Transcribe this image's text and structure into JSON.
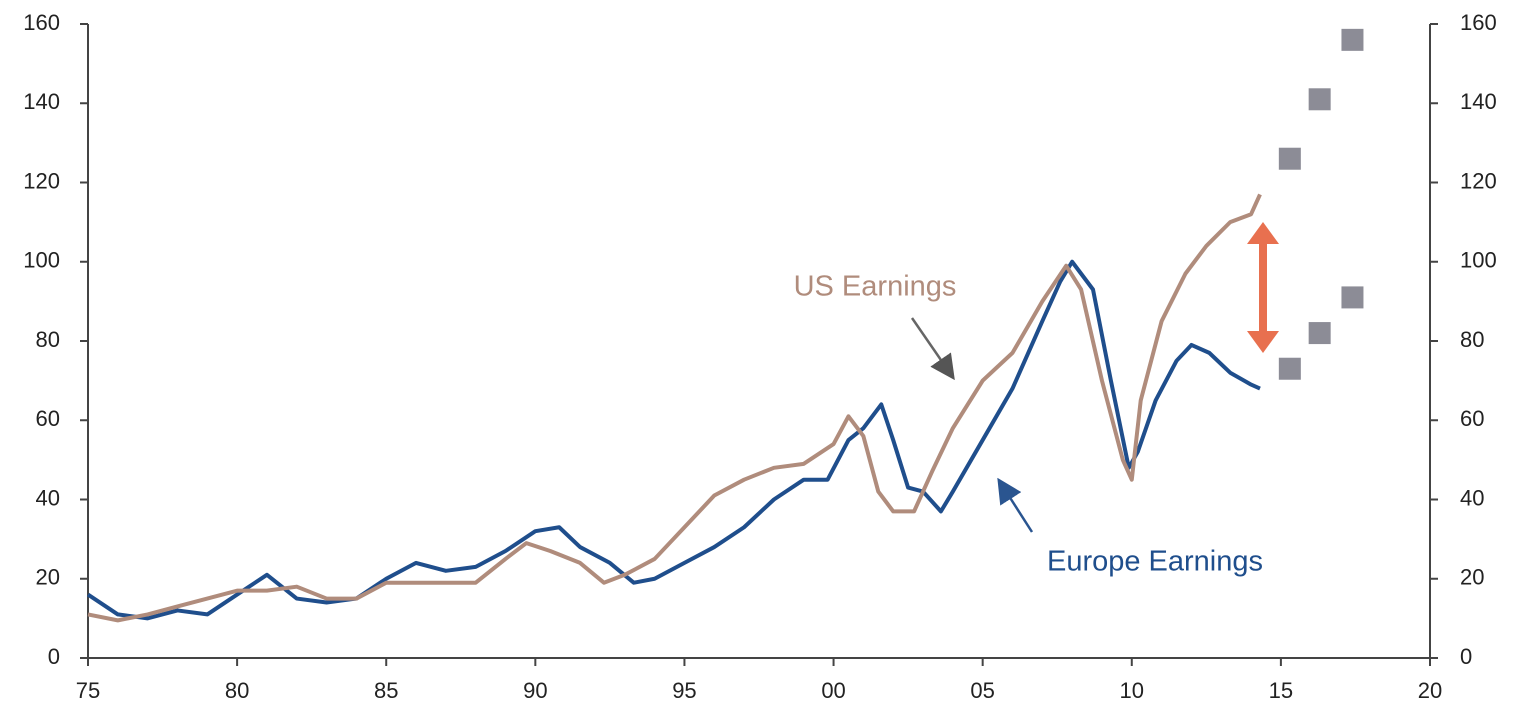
{
  "chart_data": {
    "type": "line",
    "annotations": [],
    "xlim": [
      1975,
      2020
    ],
    "xticks": [
      {
        "value": 1975,
        "label": "75"
      },
      {
        "value": 1980,
        "label": "80"
      },
      {
        "value": 1985,
        "label": "85"
      },
      {
        "value": 1990,
        "label": "90"
      },
      {
        "value": 1995,
        "label": "95"
      },
      {
        "value": 2000,
        "label": "00"
      },
      {
        "value": 2005,
        "label": "05"
      },
      {
        "value": 2010,
        "label": "10"
      },
      {
        "value": 2015,
        "label": "15"
      },
      {
        "value": 2020,
        "label": "20"
      }
    ],
    "ylim": [
      0,
      160
    ],
    "yticks": [
      0,
      20,
      40,
      60,
      80,
      100,
      120,
      140,
      160
    ],
    "y2lim": [
      0,
      160
    ],
    "y2ticks": [
      0,
      20,
      40,
      60,
      80,
      100,
      120,
      140,
      160
    ],
    "series": [
      {
        "name": "Europe Earnings",
        "color": "#1f4e8c",
        "x": [
          1975,
          1976,
          1977,
          1978,
          1979,
          1980,
          1981,
          1982,
          1983,
          1984,
          1985,
          1986,
          1987,
          1988,
          1989,
          1990,
          1990.8,
          1991.5,
          1992.5,
          1993.3,
          1994,
          1995,
          1996,
          1997,
          1998,
          1999,
          1999.8,
          2000.5,
          2001,
          2001.6,
          2002,
          2002.5,
          2003,
          2003.6,
          2004,
          2005,
          2006,
          2007,
          2007.6,
          2008,
          2008.7,
          2009.3,
          2009.9,
          2010.2,
          2010.8,
          2011.5,
          2012,
          2012.6,
          2013.3,
          2014,
          2014.3
        ],
        "values": [
          16,
          11,
          10,
          12,
          11,
          16,
          21,
          15,
          14,
          15,
          20,
          24,
          22,
          23,
          27,
          32,
          33,
          28,
          24,
          19,
          20,
          24,
          28,
          33,
          40,
          45,
          45,
          55,
          58,
          64,
          55,
          43,
          42,
          37,
          42,
          55,
          68,
          85,
          95,
          100,
          93,
          70,
          48,
          52,
          65,
          75,
          79,
          77,
          72,
          69,
          68
        ]
      },
      {
        "name": "US Earnings",
        "color": "#b08c7c",
        "x": [
          1975,
          1976,
          1977,
          1978,
          1979,
          1980,
          1981,
          1982,
          1983,
          1984,
          1985,
          1986,
          1987,
          1988,
          1989,
          1989.7,
          1990.5,
          1991.5,
          1992.3,
          1993,
          1994,
          1995,
          1996,
          1997,
          1998,
          1999,
          2000,
          2000.5,
          2001,
          2001.5,
          2002,
          2002.7,
          2003.3,
          2004,
          2005,
          2006,
          2007,
          2007.8,
          2008.3,
          2009,
          2009.7,
          2010,
          2010.3,
          2011,
          2011.8,
          2012.5,
          2013.3,
          2014,
          2014.3
        ],
        "values": [
          11,
          9.5,
          11,
          13,
          15,
          17,
          17,
          18,
          15,
          15,
          19,
          19,
          19,
          19,
          25,
          29,
          27,
          24,
          19,
          21,
          25,
          33,
          41,
          45,
          48,
          49,
          54,
          61,
          56,
          42,
          37,
          37,
          47,
          58,
          70,
          77,
          90,
          99,
          93,
          70,
          50,
          45,
          65,
          85,
          97,
          104,
          110,
          112,
          117
        ]
      },
      {
        "type": "scatter",
        "marker": "square",
        "color": "#8c8c96",
        "x": [
          2015.3,
          2016.3,
          2017.4
        ],
        "values": [
          126,
          141,
          156
        ]
      },
      {
        "type": "scatter",
        "marker": "square",
        "color": "#8c8c96",
        "x": [
          2015.3,
          2016.3,
          2017.4
        ],
        "values": [
          73,
          82,
          91
        ]
      }
    ]
  }
}
